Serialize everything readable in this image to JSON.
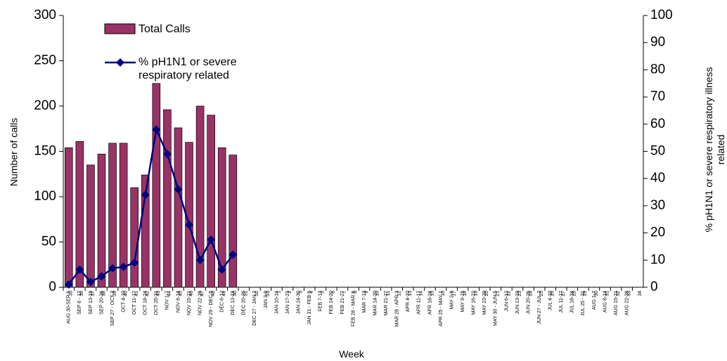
{
  "chart_data": {
    "type": "bar-line",
    "x_label": "Week",
    "y_label": "Number of calls",
    "y2_label": "% pH1N1 or severe respiratory illness related",
    "categories": [
      "AUG 30-SEP 5",
      "SEP 6 - 12",
      "SEP 13-19",
      "SEP 20-26",
      "SEP 27 - OCT 3",
      "OCT 4-10",
      "OCT 11-17",
      "OCT 18-24",
      "OCT 25-31",
      "NOV 1-7",
      "NOV 8-14",
      "NOV 15-21",
      "NOV 22-28",
      "NOV 29 - DEC 5",
      "DEC 6-12",
      "DEC 13-19",
      "DEC 20-26",
      "DEC 27 - JAN 2",
      "JAN 3-9",
      "JAN 10-16",
      "JAN 17-23",
      "JAN 24-30",
      "JAN 31 - FEB 6",
      "FEB 7-13",
      "FEB 14-20",
      "FEB 21-27",
      "FEB 28 - MAR 6",
      "MAR 7-13",
      "MAR 14-20",
      "MAR 21-27",
      "MAR 28 - APR 3",
      "APR 4-10",
      "APR 11-17",
      "APR 18-24",
      "APR 25 - MAY 1",
      "MAY 2-8",
      "MAY 9-15",
      "MAY 16-22",
      "MAY 23-29",
      "MAY 30 - JUN 5",
      "JUN 6-12",
      "JUN 13-19",
      "JUN 20-26",
      "JUN 27 - JUL 3",
      "JUL 4-10",
      "JUL 11-17",
      "JUL 18-24",
      "JUL 25 - 31",
      "AUG 1-7",
      "AUG 8-14",
      "AUG 15-21",
      "AUG 22-28",
      null
    ],
    "week_numbers": [
      35,
      36,
      37,
      38,
      39,
      40,
      41,
      42,
      43,
      44,
      45,
      46,
      47,
      48,
      49,
      50,
      51,
      52,
      53,
      1,
      2,
      3,
      4,
      5,
      6,
      7,
      8,
      9,
      10,
      11,
      12,
      13,
      14,
      15,
      16,
      17,
      18,
      19,
      20,
      21,
      22,
      23,
      24,
      25,
      26,
      27,
      28,
      29,
      30,
      31,
      32,
      33,
      34
    ],
    "series": [
      {
        "name": "Total Calls",
        "color": "#993366",
        "values": [
          154,
          161,
          135,
          147,
          159,
          159,
          110,
          124,
          225,
          196,
          176,
          160,
          200,
          190,
          154,
          146,
          null,
          null,
          null,
          null,
          null,
          null,
          null,
          null,
          null,
          null,
          null,
          null,
          null,
          null,
          null,
          null,
          null,
          null,
          null,
          null,
          null,
          null,
          null,
          null,
          null,
          null,
          null,
          null,
          null,
          null,
          null,
          null,
          null,
          null,
          null,
          null,
          null
        ]
      },
      {
        "name": "% pH1N1 or severe respiratory related",
        "color": "#000080",
        "axis": "y2",
        "values": [
          1,
          6.5,
          2,
          4,
          7,
          7.5,
          9,
          34,
          58,
          49,
          36,
          23,
          10,
          17.5,
          6.5,
          12,
          null,
          null,
          null,
          null,
          null,
          null,
          null,
          null,
          null,
          null,
          null,
          null,
          null,
          null,
          null,
          null,
          null,
          null,
          null,
          null,
          null,
          null,
          null,
          null,
          null,
          null,
          null,
          null,
          null,
          null,
          null,
          null,
          null,
          null,
          null,
          null,
          null
        ]
      }
    ],
    "ylim": [
      0,
      300
    ],
    "yticks": [
      0,
      50,
      100,
      150,
      200,
      250,
      300
    ],
    "y2lim": [
      0,
      100
    ],
    "y2ticks": [
      0,
      10,
      20,
      30,
      40,
      50,
      60,
      70,
      80,
      90,
      100
    ]
  }
}
